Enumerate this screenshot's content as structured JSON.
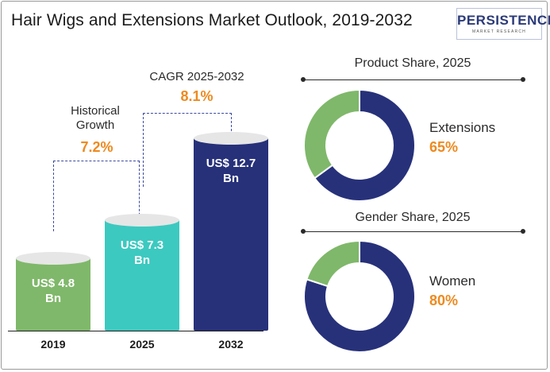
{
  "title": "Hair Wigs and Extensions Market Outlook, 2019-2032",
  "logo": {
    "main": "PERSISTENCE",
    "sub": "MARKET RESEARCH"
  },
  "colors": {
    "green": "#7fb86a",
    "teal": "#3cc9c0",
    "navy": "#27317a",
    "orange": "#ee8a1f",
    "dash": "#3b4aa0"
  },
  "annotations": {
    "historical": {
      "label_line1": "Historical",
      "label_line2": "Growth",
      "value": "7.2%"
    },
    "cagr": {
      "label": "CAGR 2025-2032",
      "value": "8.1%"
    }
  },
  "chart_data": [
    {
      "type": "bar",
      "categories": [
        "2019",
        "2025",
        "2032"
      ],
      "values": [
        4.8,
        7.3,
        12.7
      ],
      "value_labels": [
        {
          "line1": "US$ 4.8",
          "line2": "Bn"
        },
        {
          "line1": "US$ 7.3",
          "line2": "Bn"
        },
        {
          "line1": "US$ 12.7",
          "line2": "Bn"
        }
      ]
    },
    {
      "type": "pie",
      "title": "Product Share, 2025",
      "highlight": {
        "label": "Extensions",
        "value_text": "65%",
        "value": 65
      },
      "slices": [
        {
          "value": 65,
          "color": "#27317a"
        },
        {
          "value": 35,
          "color": "#7fb86a"
        }
      ]
    },
    {
      "type": "pie",
      "title": "Gender Share, 2025",
      "highlight": {
        "label": "Women",
        "value_text": "80%",
        "value": 80
      },
      "slices": [
        {
          "value": 80,
          "color": "#27317a"
        },
        {
          "value": 20,
          "color": "#7fb86a"
        }
      ]
    }
  ]
}
